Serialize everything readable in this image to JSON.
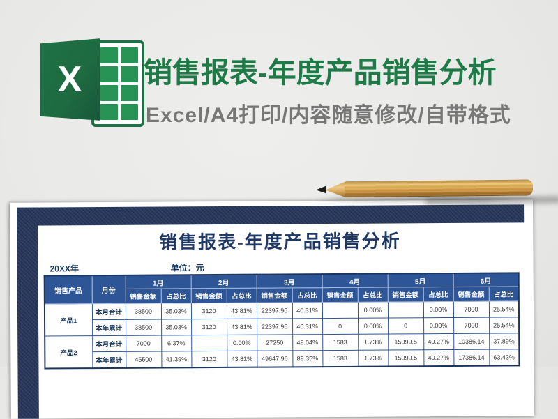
{
  "header": {
    "title": "销售报表-年度产品销售分析",
    "subtitle": "Excel/A4打印/内容随意修改/自带格式",
    "logo_letter": "X"
  },
  "preview": {
    "sheet_title": "销售报表-年度产品销售分析",
    "year_label": "20XX年",
    "unit_label": "单位：元",
    "table": {
      "corner_header": "销售产品",
      "month_col_header": "月份",
      "months": [
        "1月",
        "2月",
        "3月",
        "4月",
        "5月",
        "6月"
      ],
      "sub_headers": [
        "销售金额",
        "占总比"
      ],
      "row_labels": [
        "本月合计",
        "本年累计"
      ],
      "products": [
        {
          "name": "产品1",
          "monthly": [
            "38500",
            "35.03%",
            "3120",
            "43.81%",
            "22397.96",
            "40.31%",
            "",
            "0.00%",
            "",
            "0.00%",
            "7000",
            "25.54%"
          ],
          "yearly": [
            "38500",
            "35.03%",
            "3120",
            "43.81%",
            "22397.96",
            "40.31%",
            "0",
            "0.00%",
            "0",
            "0.00%",
            "7000",
            "25.54%"
          ]
        },
        {
          "name": "产品2",
          "monthly": [
            "7000",
            "6.37%",
            "",
            "0.00%",
            "27250",
            "49.04%",
            "1583",
            "1.73%",
            "15099.5",
            "40.27%",
            "10386.14",
            "37.89%"
          ],
          "yearly": [
            "45500",
            "41.39%",
            "3120",
            "43.81%",
            "49647.96",
            "89.35%",
            "1583",
            "1.73%",
            "15099.5",
            "40.27%",
            "17386.14",
            "63.43%"
          ]
        }
      ]
    }
  },
  "colors": {
    "excel_green": "#1f7145",
    "title_green": "#1e7b47",
    "subtitle_gray": "#777777",
    "table_header_blue": "#2e5697",
    "frame_navy": "#27375c",
    "text_navy": "#17375e",
    "border_navy": "#1c355e"
  }
}
